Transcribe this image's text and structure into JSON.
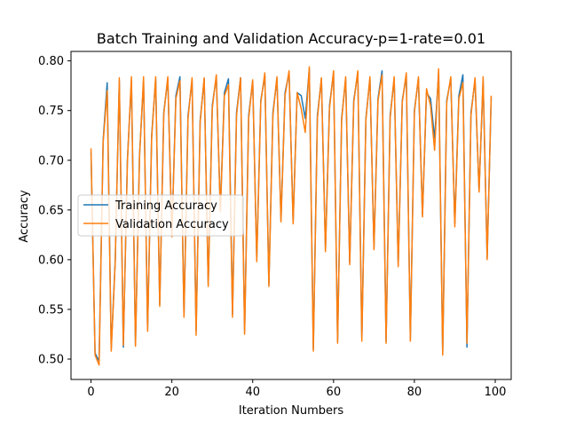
{
  "chart_data": {
    "type": "line",
    "title": "Batch Training and Validation Accuracy-p=1-rate=0.01",
    "xlabel": "Iteration Numbers",
    "ylabel": "Accuracy",
    "xlim": [
      -4.95,
      103.95
    ],
    "ylim": [
      0.4795,
      0.8095
    ],
    "xticks": [
      0,
      20,
      40,
      60,
      80,
      100
    ],
    "xtick_labels": [
      "0",
      "20",
      "40",
      "60",
      "80",
      "100"
    ],
    "yticks": [
      0.5,
      0.55,
      0.6,
      0.65,
      0.7,
      0.75,
      0.8
    ],
    "ytick_labels": [
      "0.50",
      "0.55",
      "0.60",
      "0.65",
      "0.70",
      "0.75",
      "0.80"
    ],
    "grid": false,
    "legend_position": "center-left",
    "series": [
      {
        "name": "Training Accuracy",
        "color": "#1f77b4",
        "x": [
          0,
          1,
          2,
          3,
          4,
          5,
          6,
          7,
          8,
          9,
          10,
          11,
          12,
          13,
          14,
          15,
          16,
          17,
          18,
          19,
          20,
          21,
          22,
          23,
          24,
          25,
          26,
          27,
          28,
          29,
          30,
          31,
          32,
          33,
          34,
          35,
          36,
          37,
          38,
          39,
          40,
          41,
          42,
          43,
          44,
          45,
          46,
          47,
          48,
          49,
          50,
          51,
          52,
          53,
          54,
          55,
          56,
          57,
          58,
          59,
          60,
          61,
          62,
          63,
          64,
          65,
          66,
          67,
          68,
          69,
          70,
          71,
          72,
          73,
          74,
          75,
          76,
          77,
          78,
          79,
          80,
          81,
          82,
          83,
          84,
          85,
          86,
          87,
          88,
          89,
          90,
          91,
          92,
          93,
          94,
          95,
          96,
          97,
          98,
          99
        ],
        "values": [
          0.708,
          0.506,
          0.498,
          0.72,
          0.778,
          0.51,
          0.6,
          0.78,
          0.512,
          0.7,
          0.78,
          0.515,
          0.705,
          0.78,
          0.53,
          0.725,
          0.782,
          0.555,
          0.748,
          0.782,
          0.625,
          0.765,
          0.784,
          0.544,
          0.745,
          0.78,
          0.528,
          0.74,
          0.782,
          0.575,
          0.755,
          0.784,
          0.65,
          0.768,
          0.782,
          0.545,
          0.748,
          0.783,
          0.528,
          0.745,
          0.78,
          0.6,
          0.76,
          0.785,
          0.575,
          0.748,
          0.782,
          0.64,
          0.768,
          0.788,
          0.638,
          0.768,
          0.765,
          0.742,
          0.792,
          0.51,
          0.745,
          0.782,
          0.61,
          0.755,
          0.788,
          0.518,
          0.742,
          0.782,
          0.597,
          0.76,
          0.788,
          0.52,
          0.742,
          0.782,
          0.612,
          0.762,
          0.79,
          0.518,
          0.745,
          0.782,
          0.595,
          0.76,
          0.785,
          0.52,
          0.75,
          0.782,
          0.645,
          0.768,
          0.762,
          0.722,
          0.788,
          0.506,
          0.76,
          0.782,
          0.636,
          0.765,
          0.786,
          0.512,
          0.748,
          0.78,
          0.67,
          0.78,
          0.602,
          0.763
        ]
      },
      {
        "name": "Validation Accuracy",
        "color": "#ff7f0e",
        "x": [
          0,
          1,
          2,
          3,
          4,
          5,
          6,
          7,
          8,
          9,
          10,
          11,
          12,
          13,
          14,
          15,
          16,
          17,
          18,
          19,
          20,
          21,
          22,
          23,
          24,
          25,
          26,
          27,
          28,
          29,
          30,
          31,
          32,
          33,
          34,
          35,
          36,
          37,
          38,
          39,
          40,
          41,
          42,
          43,
          44,
          45,
          46,
          47,
          48,
          49,
          50,
          51,
          52,
          53,
          54,
          55,
          56,
          57,
          58,
          59,
          60,
          61,
          62,
          63,
          64,
          65,
          66,
          67,
          68,
          69,
          70,
          71,
          72,
          73,
          74,
          75,
          76,
          77,
          78,
          79,
          80,
          81,
          82,
          83,
          84,
          85,
          86,
          87,
          88,
          89,
          90,
          91,
          92,
          93,
          94,
          95,
          96,
          97,
          98,
          99
        ],
        "values": [
          0.712,
          0.504,
          0.494,
          0.718,
          0.77,
          0.508,
          0.598,
          0.783,
          0.514,
          0.698,
          0.784,
          0.513,
          0.703,
          0.784,
          0.528,
          0.722,
          0.784,
          0.553,
          0.746,
          0.784,
          0.623,
          0.762,
          0.78,
          0.542,
          0.742,
          0.783,
          0.524,
          0.738,
          0.783,
          0.573,
          0.752,
          0.786,
          0.648,
          0.765,
          0.776,
          0.542,
          0.745,
          0.783,
          0.525,
          0.742,
          0.781,
          0.598,
          0.758,
          0.788,
          0.573,
          0.745,
          0.784,
          0.638,
          0.765,
          0.79,
          0.636,
          0.768,
          0.752,
          0.728,
          0.794,
          0.508,
          0.742,
          0.783,
          0.608,
          0.752,
          0.79,
          0.516,
          0.74,
          0.784,
          0.595,
          0.758,
          0.79,
          0.518,
          0.74,
          0.784,
          0.61,
          0.76,
          0.786,
          0.516,
          0.742,
          0.784,
          0.593,
          0.758,
          0.788,
          0.518,
          0.748,
          0.784,
          0.643,
          0.772,
          0.755,
          0.71,
          0.792,
          0.504,
          0.758,
          0.784,
          0.633,
          0.762,
          0.778,
          0.516,
          0.745,
          0.783,
          0.668,
          0.784,
          0.6,
          0.765
        ]
      }
    ]
  }
}
